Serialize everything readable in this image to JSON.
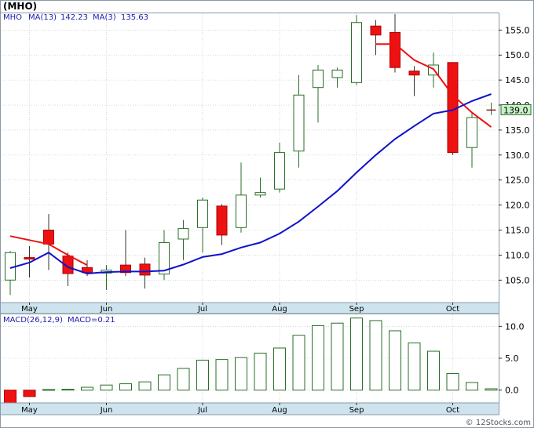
{
  "ticker_title": "(MHO)",
  "watermark": "© 12Stocks.com",
  "colors": {
    "up_candle": "#2a6e2a",
    "down_candle": "#ee1111",
    "ma13": "#1111cc",
    "ma3": "#ee1111",
    "legend_text": "#1a1ab0",
    "axis_band": "#cde4ef",
    "macd_bar": "#2a6e2a",
    "macd_neg": "#ee1111"
  },
  "chart_data": [
    {
      "type": "candlestick",
      "legend": {
        "symbol": "MHO",
        "ma13_label": "MA(13)",
        "ma13_value": "142.23",
        "ma3_label": "MA(3)",
        "ma3_value": "135.63"
      },
      "x_labels": [
        "May",
        "Jun",
        "Jul",
        "Aug",
        "Sep",
        "Oct"
      ],
      "x_label_index": [
        1,
        5,
        10,
        14,
        18,
        23
      ],
      "y_ticks": [
        105.0,
        110.0,
        115.0,
        120.0,
        125.0,
        130.0,
        135.0,
        140.0,
        145.0,
        150.0,
        155.0
      ],
      "y_tick_labels": [
        "105.0",
        "110.0",
        "115.0",
        "120.0",
        "125.0",
        "130.0",
        "135.0",
        "140.0",
        "145.0",
        "150.0",
        "155.0"
      ],
      "ylim": [
        100.5,
        158.5
      ],
      "last_price_label": "139.0",
      "last_price": 139.0,
      "candles": [
        {
          "o": 105.0,
          "h": 110.8,
          "l": 102.0,
          "c": 110.5
        },
        {
          "o": 109.5,
          "h": 111.8,
          "l": 105.5,
          "c": 109.2
        },
        {
          "o": 115.0,
          "h": 118.2,
          "l": 107.0,
          "c": 112.2
        },
        {
          "o": 109.8,
          "h": 110.5,
          "l": 103.8,
          "c": 106.3
        },
        {
          "o": 107.5,
          "h": 109.0,
          "l": 105.8,
          "c": 106.5
        },
        {
          "o": 106.4,
          "h": 108.0,
          "l": 103.0,
          "c": 107.0
        },
        {
          "o": 108.0,
          "h": 115.0,
          "l": 105.8,
          "c": 106.5
        },
        {
          "o": 108.2,
          "h": 109.5,
          "l": 103.3,
          "c": 106.0
        },
        {
          "o": 106.2,
          "h": 115.0,
          "l": 105.0,
          "c": 112.5
        },
        {
          "o": 113.2,
          "h": 117.0,
          "l": 109.0,
          "c": 115.3
        },
        {
          "o": 115.5,
          "h": 121.5,
          "l": 110.5,
          "c": 121.0
        },
        {
          "o": 119.8,
          "h": 120.2,
          "l": 112.0,
          "c": 114.0
        },
        {
          "o": 115.5,
          "h": 128.5,
          "l": 114.5,
          "c": 122.0
        },
        {
          "o": 122.0,
          "h": 125.5,
          "l": 121.5,
          "c": 122.5
        },
        {
          "o": 123.2,
          "h": 132.5,
          "l": 122.5,
          "c": 130.5
        },
        {
          "o": 130.8,
          "h": 146.0,
          "l": 127.5,
          "c": 142.0
        },
        {
          "o": 143.5,
          "h": 148.0,
          "l": 136.5,
          "c": 147.0
        },
        {
          "o": 145.5,
          "h": 147.5,
          "l": 143.5,
          "c": 147.0
        },
        {
          "o": 144.5,
          "h": 158.0,
          "l": 144.0,
          "c": 156.5
        },
        {
          "o": 155.8,
          "h": 157.0,
          "l": 150.0,
          "c": 154.0
        },
        {
          "o": 154.5,
          "h": 158.2,
          "l": 146.5,
          "c": 147.5
        },
        {
          "o": 146.8,
          "h": 147.8,
          "l": 141.8,
          "c": 146.0
        },
        {
          "o": 146.0,
          "h": 150.5,
          "l": 143.5,
          "c": 148.0
        },
        {
          "o": 148.5,
          "h": 148.5,
          "l": 130.0,
          "c": 130.5
        },
        {
          "o": 131.5,
          "h": 138.5,
          "l": 127.5,
          "c": 137.5
        },
        {
          "o": 139.0,
          "h": 140.5,
          "l": 138.0,
          "c": 139.0
        }
      ],
      "ma13": [
        107.4,
        108.5,
        110.5,
        107.6,
        106.3,
        106.6,
        106.7,
        106.7,
        106.9,
        108.1,
        109.6,
        110.2,
        111.5,
        112.5,
        114.3,
        116.7,
        119.7,
        122.8,
        126.5,
        130.0,
        133.2,
        135.8,
        138.3,
        139.0,
        140.8,
        142.2
      ],
      "ma3": [
        113.8,
        113.0,
        112.2,
        110.0,
        108.0,
        null,
        null,
        null,
        null,
        null,
        null,
        null,
        null,
        null,
        null,
        null,
        null,
        null,
        null,
        152.2,
        152.2,
        149.0,
        147.2,
        142.0,
        138.5,
        135.6
      ]
    },
    {
      "type": "bar",
      "legend": {
        "label": "MACD(26,12,9)",
        "value_label": "MACD=0.21"
      },
      "y_ticks": [
        0.0,
        5.0,
        10.0
      ],
      "y_tick_labels": [
        "0.0",
        "5.0",
        "10.0"
      ],
      "ylim": [
        -2.0,
        12.0
      ],
      "values": [
        -2.0,
        -1.0,
        0.1,
        0.15,
        0.45,
        0.8,
        1.0,
        1.3,
        2.4,
        3.4,
        4.7,
        4.8,
        5.1,
        5.8,
        6.6,
        8.6,
        10.1,
        10.5,
        11.3,
        10.9,
        9.3,
        7.4,
        6.1,
        2.6,
        1.2,
        0.21
      ]
    }
  ]
}
